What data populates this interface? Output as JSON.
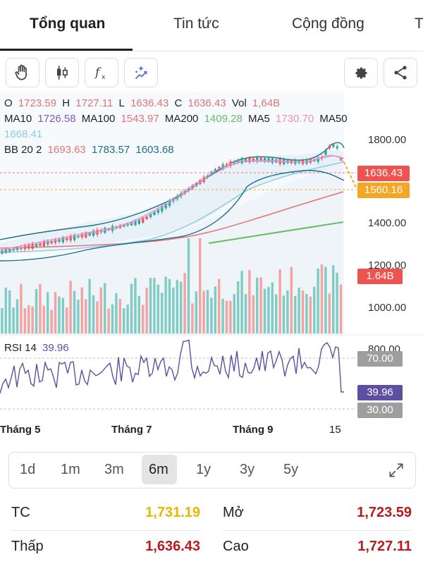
{
  "tabs": [
    {
      "label": "Tổng quan",
      "active": true
    },
    {
      "label": "Tin tức",
      "active": false
    },
    {
      "label": "Cộng đồng",
      "active": false
    },
    {
      "label": "T",
      "active": false
    }
  ],
  "toolbar": {
    "left_icons": [
      "hand-icon",
      "candlestick-icon",
      "fx-indicator-icon",
      "magic-wand-icon"
    ],
    "right_icons": [
      "gear-icon",
      "share-icon"
    ]
  },
  "legend": {
    "o_label": "O",
    "o_value": "1723.59",
    "h_label": "H",
    "h_value": "1727.11",
    "l_label": "L",
    "l_value": "1636.43",
    "c_label": "C",
    "c_value": "1636.43",
    "vol_label": "Vol",
    "vol_value": "1,64B",
    "ma10_label": "MA10",
    "ma10_value": "1726.58",
    "ma100_label": "MA100",
    "ma100_value": "1543.97",
    "ma200_label": "MA200",
    "ma200_value": "1409.28",
    "ma5_label": "MA5",
    "ma5_value": "1730.70",
    "ma50_label": "MA50",
    "ma50_value": "1668.41",
    "bb_label": "BB 20 2",
    "bb_mid": "1693.63",
    "bb_upper": "1783.57",
    "bb_lower": "1603.68"
  },
  "price_axis": [
    "1800.00",
    "1400.00",
    "1200.00",
    "1000.00",
    "800.00"
  ],
  "price_tags": {
    "last": "1636.43",
    "ma": "1560.16",
    "volume": "1.64B"
  },
  "rsi": {
    "label": "RSI 14",
    "value": "39.96",
    "upper": "70.00",
    "lower": "30.00"
  },
  "months": [
    "Tháng 5",
    "Tháng 7",
    "Tháng 9",
    "15"
  ],
  "periods": [
    {
      "label": "1d",
      "active": false
    },
    {
      "label": "1m",
      "active": false
    },
    {
      "label": "3m",
      "active": false
    },
    {
      "label": "6m",
      "active": true
    },
    {
      "label": "1y",
      "active": false
    },
    {
      "label": "3y",
      "active": false
    },
    {
      "label": "5y",
      "active": false
    }
  ],
  "stats": [
    {
      "label": "TC",
      "value": "1,731.19",
      "color": "#e6b800"
    },
    {
      "label": "Mở",
      "value": "1,723.59",
      "color": "#b71c1c"
    },
    {
      "label": "Thấp",
      "value": "1,636.43",
      "color": "#b71c1c"
    },
    {
      "label": "Cao",
      "value": "1,727.11",
      "color": "#b71c1c"
    }
  ],
  "colors": {
    "up": "#26a69a",
    "down": "#ef5350",
    "ma200": "#66bb6a",
    "bb": "#1f6e8c",
    "ma50": "#8ecae6",
    "ma100": "#e57373",
    "orange": "#f5a623",
    "rsi": "#5e4fa2"
  }
}
